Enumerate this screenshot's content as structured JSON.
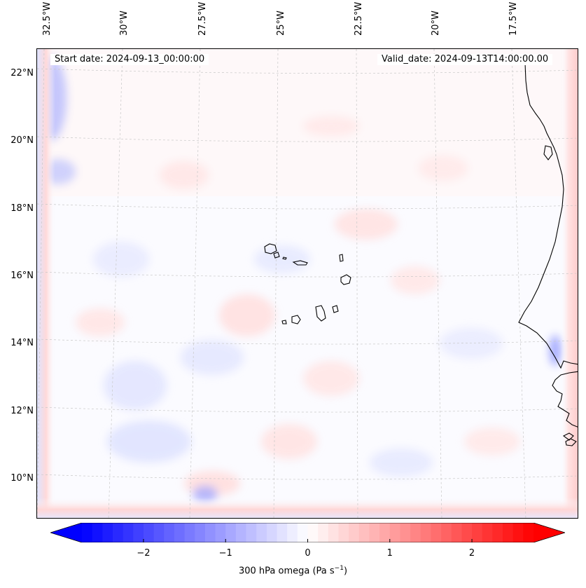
{
  "map": {
    "start_date": "Start date: 2024-09-13_00:00:00",
    "valid_date": "Valid_date: 2024-09-13T14:00:00.00",
    "lon_labels": [
      "32.5°W",
      "30°W",
      "27.5°W",
      "25°W",
      "22.5°W",
      "20°W",
      "17.5°W"
    ],
    "lat_labels": [
      "22°N",
      "20°N",
      "18°N",
      "16°N",
      "14°N",
      "12°N",
      "10°N"
    ],
    "colors": {
      "negative": "#0000ff",
      "zero": "#ffffff",
      "positive": "#ff0000",
      "coast": "#000000",
      "grid": "#bbbbbb"
    }
  },
  "colorbar": {
    "label_prefix": "300 hPa omega (Pa s",
    "label_exp": "−1",
    "label_suffix": ")",
    "ticks": [
      "−2",
      "−1",
      "0",
      "1",
      "2"
    ],
    "range": [
      -2.75,
      2.75
    ],
    "tick_values": [
      -2,
      -1,
      0,
      1,
      2
    ]
  }
}
